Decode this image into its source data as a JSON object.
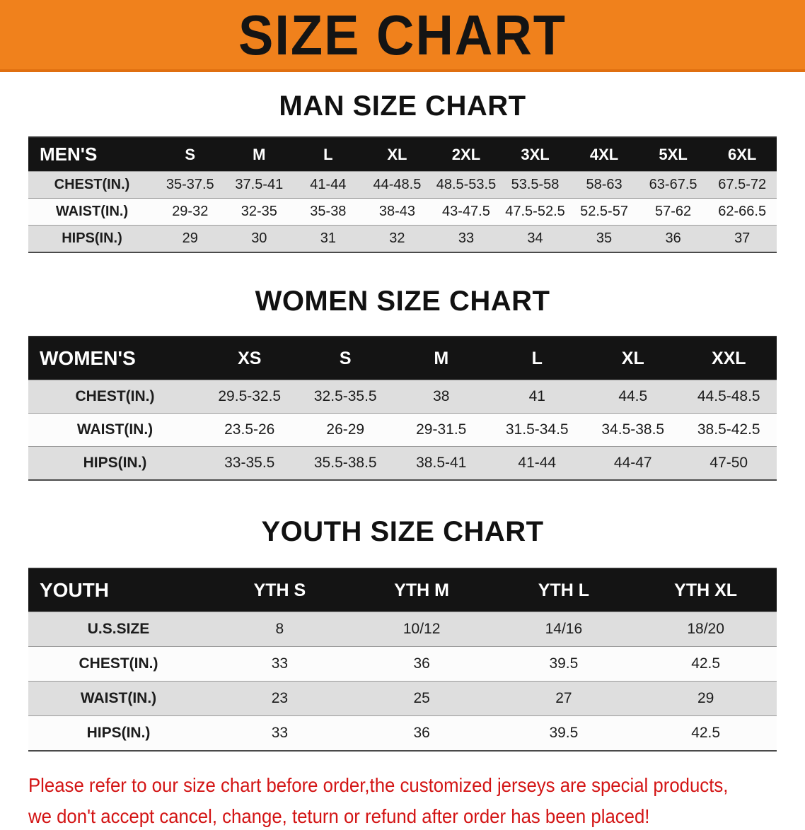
{
  "banner": {
    "title": "SIZE CHART",
    "bg_color": "#f0811c",
    "text_color": "#141414"
  },
  "men": {
    "heading": "MAN SIZE CHART",
    "table": {
      "header": [
        "MEN'S",
        "S",
        "M",
        "L",
        "XL",
        "2XL",
        "3XL",
        "4XL",
        "5XL",
        "6XL"
      ],
      "rows": [
        [
          "CHEST(IN.)",
          "35-37.5",
          "37.5-41",
          "41-44",
          "44-48.5",
          "48.5-53.5",
          "53.5-58",
          "58-63",
          "63-67.5",
          "67.5-72"
        ],
        [
          "WAIST(IN.)",
          "29-32",
          "32-35",
          "35-38",
          "38-43",
          "43-47.5",
          "47.5-52.5",
          "52.5-57",
          "57-62",
          "62-66.5"
        ],
        [
          "HIPS(IN.)",
          "29",
          "30",
          "31",
          "32",
          "33",
          "34",
          "35",
          "36",
          "37"
        ]
      ]
    }
  },
  "women": {
    "heading": "WOMEN SIZE CHART",
    "table": {
      "header": [
        "WOMEN'S",
        "XS",
        "S",
        "M",
        "L",
        "XL",
        "XXL"
      ],
      "rows": [
        [
          "CHEST(IN.)",
          "29.5-32.5",
          "32.5-35.5",
          "38",
          "41",
          "44.5",
          "44.5-48.5"
        ],
        [
          "WAIST(IN.)",
          "23.5-26",
          "26-29",
          "29-31.5",
          "31.5-34.5",
          "34.5-38.5",
          "38.5-42.5"
        ],
        [
          "HIPS(IN.)",
          "33-35.5",
          "35.5-38.5",
          "38.5-41",
          "41-44",
          "44-47",
          "47-50"
        ]
      ]
    }
  },
  "youth": {
    "heading": "YOUTH SIZE CHART",
    "table": {
      "header": [
        "YOUTH",
        "YTH S",
        "YTH M",
        "YTH L",
        "YTH XL"
      ],
      "rows": [
        [
          "U.S.SIZE",
          "8",
          "10/12",
          "14/16",
          "18/20"
        ],
        [
          "CHEST(IN.)",
          "33",
          "36",
          "39.5",
          "42.5"
        ],
        [
          "WAIST(IN.)",
          "23",
          "25",
          "27",
          "29"
        ],
        [
          "HIPS(IN.)",
          "33",
          "36",
          "39.5",
          "42.5"
        ]
      ]
    }
  },
  "note": {
    "line1": "Please refer to our size chart before order,the customized jerseys are special products,",
    "line2": "we don't accept cancel, change, teturn or refund after order has been placed!",
    "text_color": "#d31414"
  },
  "colors": {
    "table_header_bg": "#141414",
    "row_stripe": "#dedede",
    "row_plain": "#fcfcfc"
  }
}
